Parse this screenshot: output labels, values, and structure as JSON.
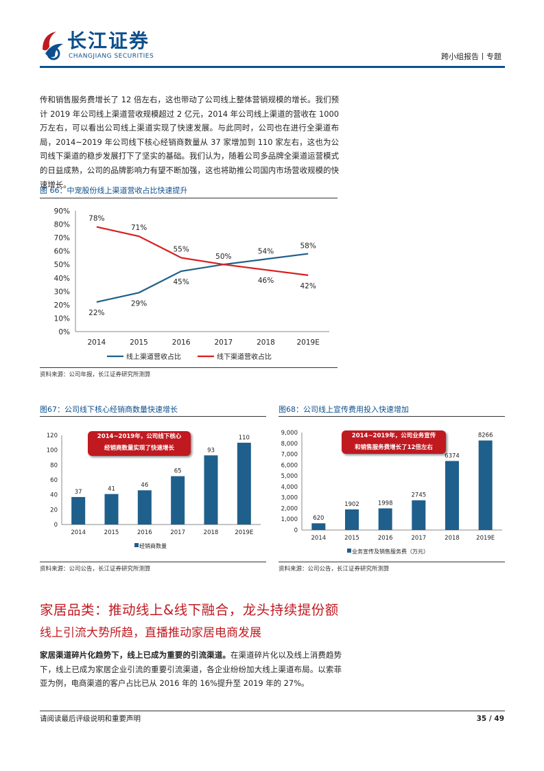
{
  "header": {
    "logo_cn": "长江证券",
    "logo_en": "CHANGJIANG SECURITIES",
    "report_type": "跨小组报告丨专题"
  },
  "intro_text": "传和销售服务费增长了 12 倍左右，这也带动了公司线上整体营销规模的增长。我们预计 2019 年公司线上渠道营收规模超过 2 亿元，2014 年公司线上渠道的营收在 1000 万左右，可以看出公司线上渠道实现了快速发展。与此同时，公司也在进行全渠道布局，2014~2019 年公司线下核心经销商数量从 37 家增加到 110 家左右，这也为公司线下渠道的稳步发展打下了坚实的基础。我们认为，随着公司多品牌全渠道运营模式的日益成熟，公司的品牌影响力有望不断加强，这也将助推公司国内市场营收规模的快速增长。",
  "fig66": {
    "title": "图 66：中宠股份线上渠道营收占比快速提升",
    "source": "资料来源：公司年报，长江证券研究所测算"
  },
  "fig67": {
    "title": "图67：公司线下核心经销商数量快速增长",
    "source": "资料来源：公司公告，长江证券研究所测算",
    "callout_line1": "2014~2019年，公司线下核心",
    "callout_line2": "经销商数量实现了快速增长"
  },
  "fig68": {
    "title": "图68：公司线上宣传费用投入快速增加",
    "source": "资料来源：公司公告，长江证券研究所测算",
    "callout_line1": "2014~2019年，公司业务宣传",
    "callout_line2": "和销售服务费增长了12倍左右"
  },
  "section_heading": "家居品类：推动线上&线下融合，龙头持续提份额",
  "sub_heading": "线上引流大势所趋，直播推动家居电商发展",
  "body2_bold": "家居渠道碎片化趋势下，线上已成为重要的引流渠道。",
  "body2_rest": "在渠道碎片化以及线上消费趋势下，线上已成为家居企业引流的重要引流渠道，各企业纷纷加大线上渠道布局。以索菲亚为例，电商渠道的客户占比已从 2016 年的 16%提升至 2019 年的 27%。",
  "footer": {
    "left": "请阅读最后评级说明和重要声明",
    "right": "35 / 49"
  },
  "chart_data": [
    {
      "type": "line",
      "x": [
        "2014",
        "2015",
        "2016",
        "2017",
        "2018",
        "2019E"
      ],
      "ylim": [
        0,
        90
      ],
      "y_ticks": [
        "0%",
        "10%",
        "20%",
        "30%",
        "40%",
        "50%",
        "60%",
        "70%",
        "80%",
        "90%"
      ],
      "series": [
        {
          "name": "线上渠道营收占比",
          "values": [
            22,
            29,
            45,
            50,
            54,
            58
          ],
          "labels": [
            "22%",
            "29%",
            "45%",
            "50%",
            "54%",
            "58%"
          ],
          "color": "#1f5f8b"
        },
        {
          "name": "线下渠道营收占比",
          "values": [
            78,
            71,
            55,
            50,
            46,
            42
          ],
          "labels": [
            "78%",
            "71%",
            "55%",
            "",
            "46%",
            "42%"
          ],
          "color": "#d81e1e"
        }
      ],
      "grid": false,
      "legend": "bottom"
    },
    {
      "type": "bar",
      "categories": [
        "2014",
        "2015",
        "2016",
        "2017",
        "2018",
        "2019E"
      ],
      "ylim": [
        0,
        120
      ],
      "y_ticks": [
        "0",
        "20",
        "40",
        "60",
        "80",
        "100",
        "120"
      ],
      "series": [
        {
          "name": "经销商数量",
          "values": [
            37,
            41,
            46,
            65,
            93,
            110
          ],
          "color": "#1f5f8b"
        }
      ],
      "legend": "bottom"
    },
    {
      "type": "bar",
      "categories": [
        "2014",
        "2015",
        "2016",
        "2017",
        "2018",
        "2019E"
      ],
      "ylim": [
        0,
        9000
      ],
      "y_ticks": [
        "0",
        "1,000",
        "2,000",
        "3,000",
        "4,000",
        "5,000",
        "6,000",
        "7,000",
        "8,000",
        "9,000"
      ],
      "series": [
        {
          "name": "业务宣传及销售服务费（万元）",
          "values": [
            620,
            1902,
            1998,
            2745,
            6374,
            8266
          ],
          "color": "#1f5f8b"
        }
      ],
      "legend": "bottom"
    }
  ]
}
